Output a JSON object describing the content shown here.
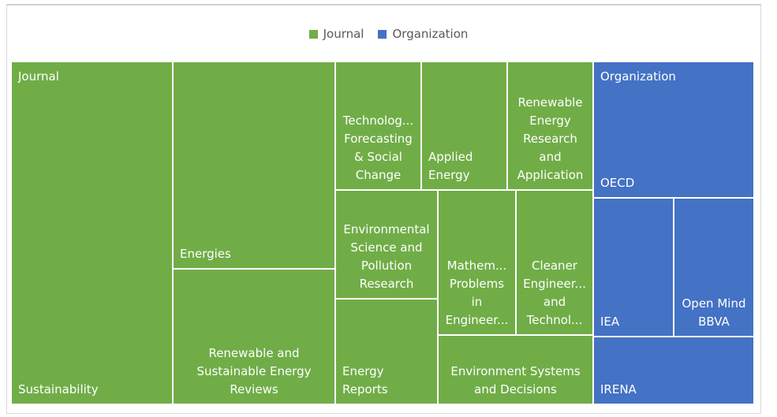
{
  "legend": [
    {
      "label": "Journal",
      "color": "#70AD47"
    },
    {
      "label": "Organization",
      "color": "#4472C4"
    }
  ],
  "chart_data": {
    "type": "treemap",
    "groups": [
      {
        "name": "Journal",
        "color": "#70AD47",
        "items": [
          {
            "label": "Sustainability",
            "value": 5
          },
          {
            "label": "Energies",
            "value": 3
          },
          {
            "label": "Renewable and\nSustainable Energy\nReviews",
            "value": 2
          },
          {
            "label": "Technolog...\nForecasting\n& Social\nChange",
            "value": 1
          },
          {
            "label": "Applied\nEnergy",
            "value": 1
          },
          {
            "label": "Renewable\nEnergy\nResearch\nand\nApplication",
            "value": 1
          },
          {
            "label": "Environmental\nScience and\nPollution\nResearch",
            "value": 1
          },
          {
            "label": "Energy\nReports",
            "value": 1
          },
          {
            "label": "Mathem...\nProblems\nin\nEngineer...",
            "value": 1
          },
          {
            "label": "Cleaner\nEngineer...\nand\nTechnol...",
            "value": 1
          },
          {
            "label": "Environment Systems\nand Decisions",
            "value": 1
          }
        ]
      },
      {
        "name": "Organization",
        "color": "#4472C4",
        "items": [
          {
            "label": "OECD",
            "value": 2
          },
          {
            "label": "IEA",
            "value": 1
          },
          {
            "label": "Open Mind\nBBVA",
            "value": 1
          },
          {
            "label": "IRENA",
            "value": 1
          }
        ]
      }
    ]
  }
}
